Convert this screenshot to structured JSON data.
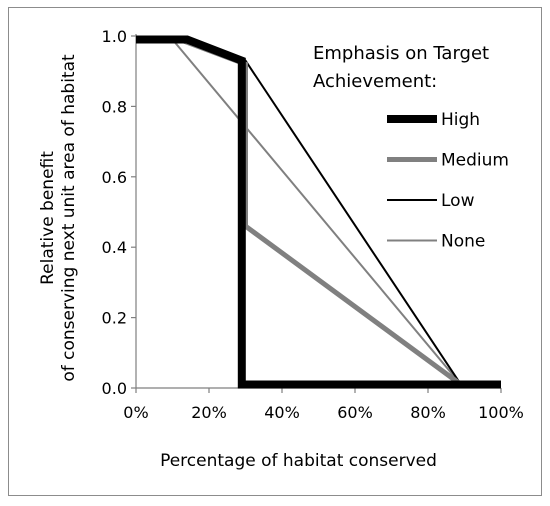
{
  "chart_data": {
    "type": "line",
    "xlabel": "Percentage of habitat conserved",
    "ylabel_lines": [
      "Relative benefit",
      "of conserving next unit area of habitat"
    ],
    "xlim": [
      0,
      100
    ],
    "ylim": [
      0,
      1.0
    ],
    "x_ticks": [
      0,
      20,
      40,
      60,
      80,
      100
    ],
    "x_tick_labels": [
      "0%",
      "20%",
      "40%",
      "60%",
      "80%",
      "100%"
    ],
    "y_ticks": [
      0,
      0.2,
      0.4,
      0.6,
      0.8,
      1.0
    ],
    "y_tick_labels": [
      "0.0",
      "0.2",
      "0.4",
      "0.6",
      "0.8",
      "1.0"
    ],
    "grid": false,
    "legend": {
      "title_lines": [
        "Emphasis on Target",
        "Achievement:"
      ],
      "placement": "top-right"
    },
    "series": [
      {
        "name": "High",
        "color": "#000000",
        "weight": "thick",
        "x": [
          0,
          14,
          29,
          29,
          29,
          100
        ],
        "y": [
          0.99,
          0.99,
          0.93,
          0.01,
          0.01,
          0.01
        ]
      },
      {
        "name": "Medium",
        "color": "#808080",
        "weight": "medium",
        "x": [
          0,
          12,
          30,
          30,
          89,
          100
        ],
        "y": [
          0.99,
          0.99,
          0.92,
          0.46,
          0.01,
          0.01
        ]
      },
      {
        "name": "Low",
        "color": "#000000",
        "weight": "thin",
        "x": [
          0,
          14,
          30,
          89,
          100
        ],
        "y": [
          0.99,
          0.99,
          0.93,
          0.01,
          0.01
        ]
      },
      {
        "name": "None",
        "color": "#808080",
        "weight": "thin",
        "x": [
          0,
          10,
          89,
          100
        ],
        "y": [
          0.99,
          0.99,
          0.01,
          0.01
        ]
      }
    ]
  }
}
